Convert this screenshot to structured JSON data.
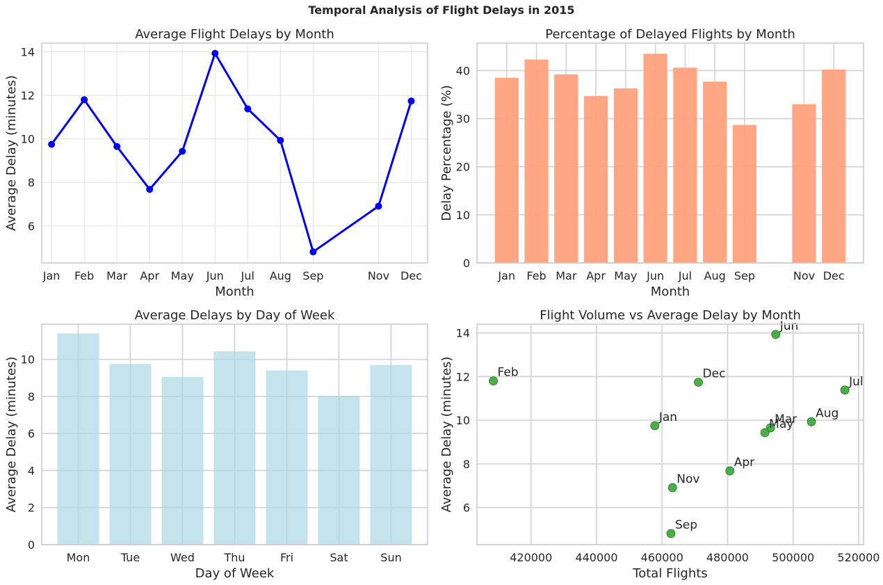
{
  "figure": {
    "title": "Temporal Analysis of Flight Delays in 2015"
  },
  "chart_data": [
    {
      "id": "p1",
      "type": "line",
      "title": "Average Flight Delays by Month",
      "xlabel": "Month",
      "ylabel": "Average Delay (minutes)",
      "x": [
        1,
        2,
        3,
        4,
        5,
        6,
        7,
        8,
        9,
        11,
        12
      ],
      "x_tick_labels": [
        "Jan",
        "Feb",
        "Mar",
        "Apr",
        "May",
        "Jun",
        "Jul",
        "Aug",
        "Sep",
        "Nov",
        "Dec"
      ],
      "values": [
        9.75,
        11.8,
        9.65,
        7.68,
        9.43,
        13.93,
        11.38,
        9.93,
        4.81,
        6.91,
        11.74
      ],
      "xlim": [
        0.7,
        12.5
      ],
      "ylim": [
        4.3,
        14.4
      ],
      "yticks": [
        6,
        8,
        10,
        12,
        14
      ],
      "grid": true,
      "color": "#0000ee"
    },
    {
      "id": "p2",
      "type": "bar",
      "title": "Percentage of Delayed Flights by Month",
      "xlabel": "Month",
      "ylabel": "Delay Percentage (%)",
      "x": [
        1,
        2,
        3,
        4,
        5,
        6,
        7,
        8,
        9,
        11,
        12
      ],
      "categories": [
        "Jan",
        "Feb",
        "Mar",
        "Apr",
        "May",
        "Jun",
        "Jul",
        "Aug",
        "Sep",
        "Nov",
        "Dec"
      ],
      "values": [
        38.5,
        42.3,
        39.2,
        34.7,
        36.3,
        43.5,
        40.6,
        37.7,
        28.7,
        33.0,
        40.2
      ],
      "xlim": [
        0.0,
        13.0
      ],
      "ylim": [
        0,
        45.7
      ],
      "yticks": [
        0,
        10,
        20,
        30,
        40
      ],
      "grid": true,
      "color": "#ffa07a"
    },
    {
      "id": "p3",
      "type": "bar",
      "title": "Average Delays by Day of Week",
      "xlabel": "Day of Week",
      "ylabel": "Average Delay (minutes)",
      "x": [
        1,
        2,
        3,
        4,
        5,
        6,
        7
      ],
      "categories": [
        "Mon",
        "Tue",
        "Wed",
        "Thu",
        "Fri",
        "Sat",
        "Sun"
      ],
      "values": [
        11.4,
        9.75,
        9.05,
        10.43,
        9.4,
        8.03,
        9.7
      ],
      "xlim": [
        0.3,
        7.7
      ],
      "ylim": [
        0,
        11.9
      ],
      "yticks": [
        0,
        2,
        4,
        6,
        8,
        10
      ],
      "grid": true,
      "color": "#add8e6"
    },
    {
      "id": "p4",
      "type": "scatter",
      "title": "Flight Volume vs Average Delay by Month",
      "xlabel": "Total Flights",
      "ylabel": "Average Delay (minutes)",
      "xlim": [
        403500,
        521500
      ],
      "ylim": [
        4.3,
        14.4
      ],
      "xticks": [
        420000,
        440000,
        460000,
        480000,
        500000,
        520000
      ],
      "yticks": [
        6,
        8,
        10,
        12,
        14
      ],
      "grid": true,
      "color": "#2ca02c",
      "points": [
        {
          "label": "Jan",
          "x": 457800,
          "y": 9.75
        },
        {
          "label": "Feb",
          "x": 408500,
          "y": 11.8
        },
        {
          "label": "Mar",
          "x": 493100,
          "y": 9.65
        },
        {
          "label": "Apr",
          "x": 480700,
          "y": 7.68
        },
        {
          "label": "May",
          "x": 491400,
          "y": 9.43
        },
        {
          "label": "Jun",
          "x": 494700,
          "y": 13.93
        },
        {
          "label": "Jul",
          "x": 515800,
          "y": 11.38
        },
        {
          "label": "Aug",
          "x": 505600,
          "y": 9.93
        },
        {
          "label": "Sep",
          "x": 462700,
          "y": 4.81
        },
        {
          "label": "Nov",
          "x": 463200,
          "y": 6.91
        },
        {
          "label": "Dec",
          "x": 471100,
          "y": 11.74
        }
      ]
    }
  ]
}
